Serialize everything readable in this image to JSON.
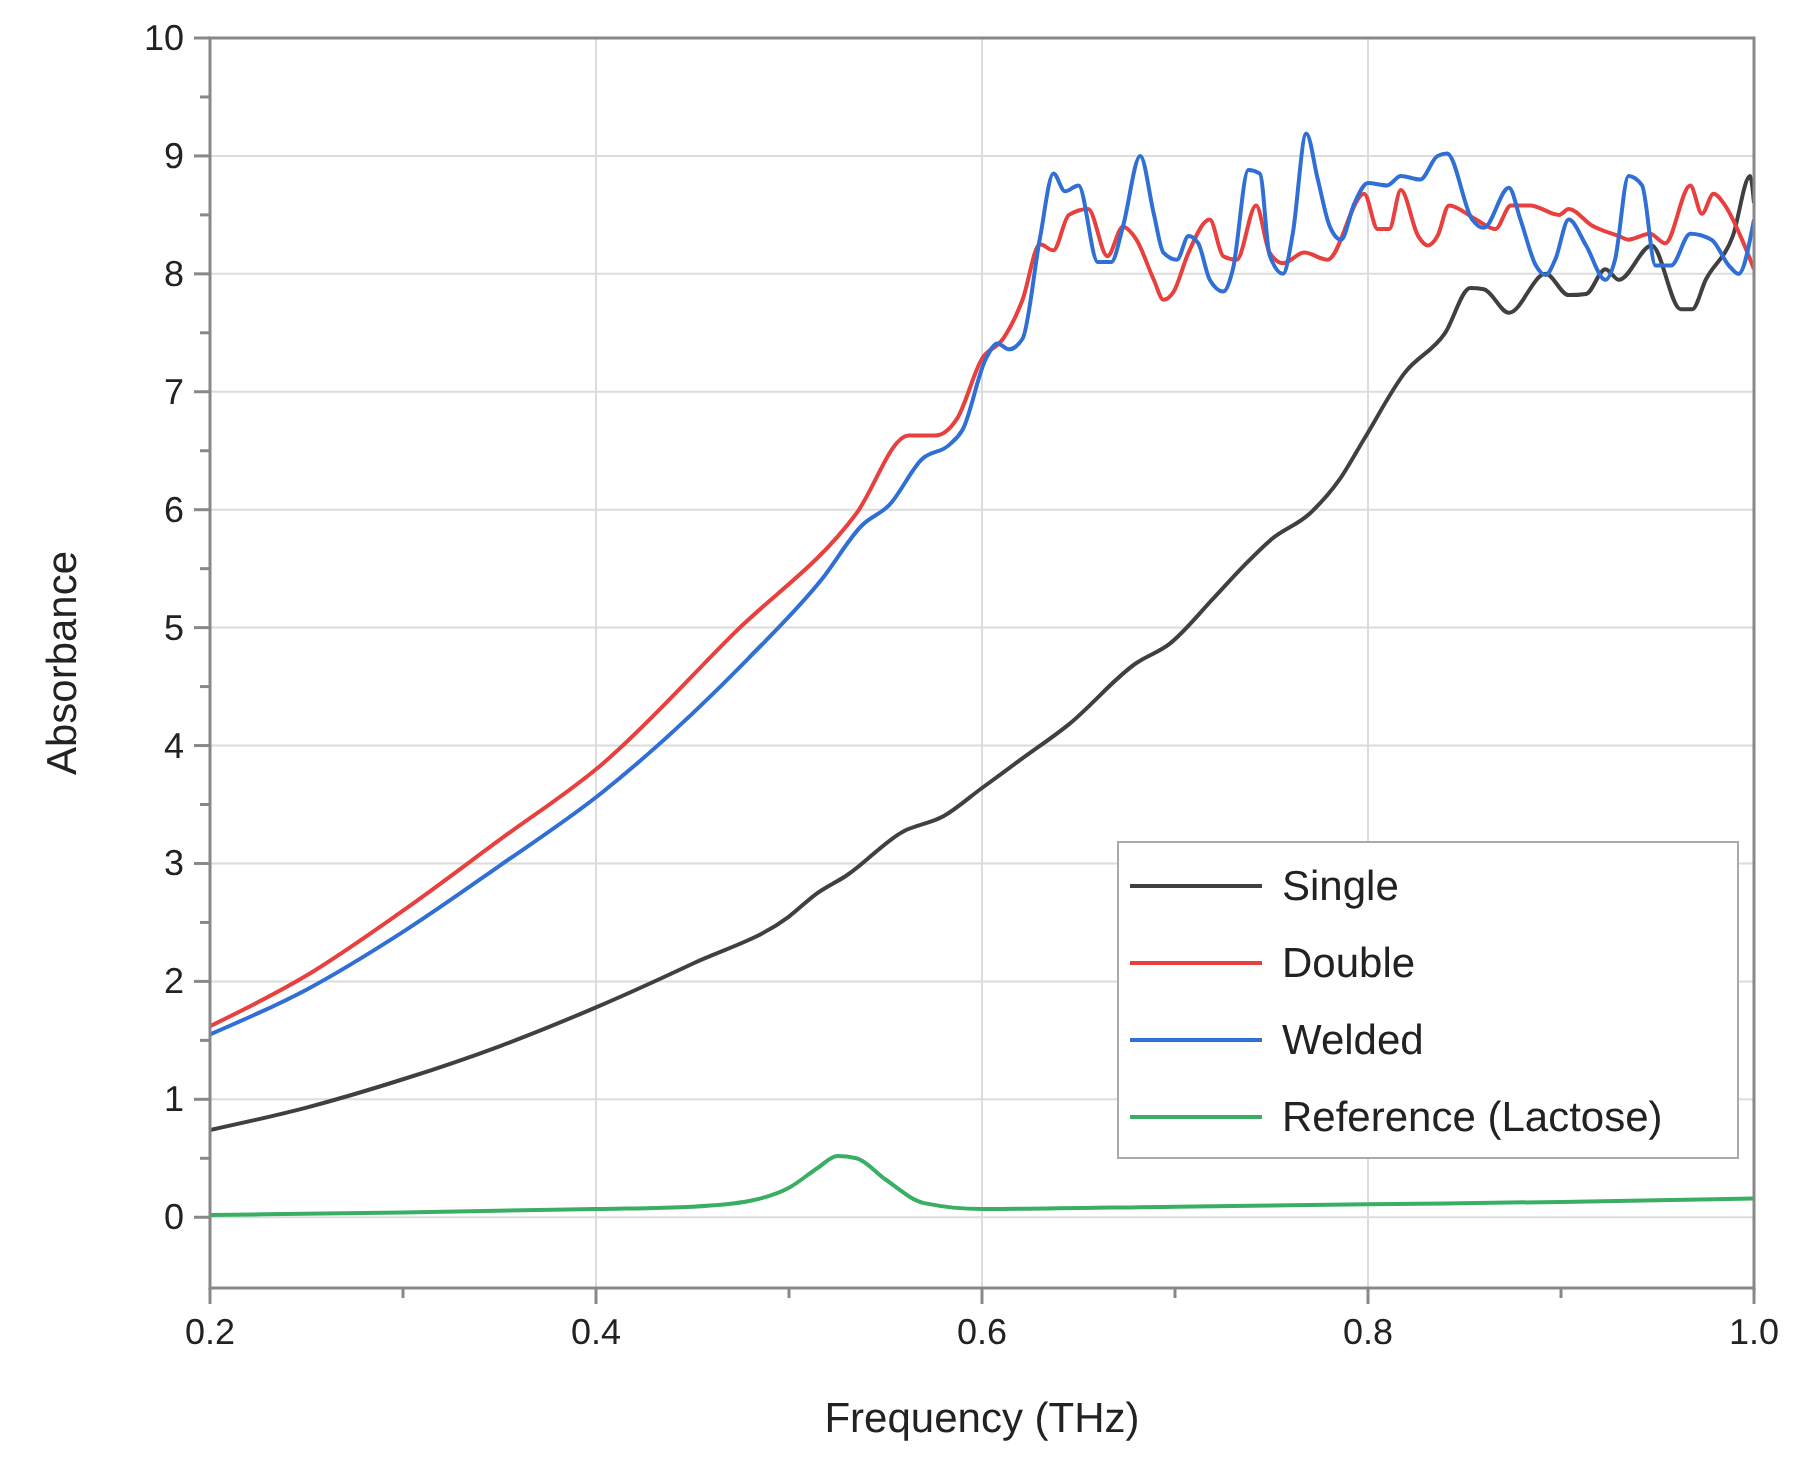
{
  "chart_data": {
    "type": "line",
    "xlabel": "Frequency (THz)",
    "ylabel": "Absorbance",
    "xlim": [
      0.2,
      1.0
    ],
    "ylim": [
      -0.6,
      10
    ],
    "xticks": [
      0.2,
      {
        "value": 0.3,
        "label": null
      },
      0.4,
      {
        "value": 0.5,
        "label": null
      },
      0.6,
      {
        "value": 0.7,
        "label": null
      },
      0.8,
      {
        "value": 0.9,
        "label": null
      },
      {
        "value": 1,
        "label": "1.0"
      }
    ],
    "yticks": [
      0,
      {
        "value": 0.5,
        "label": null
      },
      1,
      {
        "value": 1.5,
        "label": null
      },
      2,
      {
        "value": 2.5,
        "label": null
      },
      3,
      {
        "value": 3.5,
        "label": null
      },
      4,
      {
        "value": 4.5,
        "label": null
      },
      5,
      {
        "value": 5.5,
        "label": null
      },
      6,
      {
        "value": 6.5,
        "label": null
      },
      7,
      {
        "value": 7.5,
        "label": null
      },
      8,
      {
        "value": 8.5,
        "label": null
      },
      9,
      {
        "value": 9.5,
        "label": null
      },
      10
    ],
    "grid": true,
    "legend": "bottom right",
    "line_style": "solid",
    "marker": "none",
    "series": [
      {
        "name": "Single",
        "color": "#404040",
        "x": [
          0.2,
          0.25,
          0.3,
          0.35,
          0.4,
          0.45,
          0.5,
          0.514,
          0.53,
          0.559,
          0.58,
          0.6,
          0.62,
          0.645,
          0.68,
          0.697,
          0.72,
          0.736,
          0.75,
          0.77,
          0.785,
          0.798,
          0.819,
          0.84,
          0.853,
          0.86,
          0.873,
          0.892,
          0.904,
          0.913,
          0.923,
          0.93,
          0.947,
          0.962,
          0.968,
          0.975,
          0.989,
          0.998,
          1.0
        ],
        "values": [
          0.74,
          0.93,
          1.17,
          1.45,
          1.78,
          2.15,
          2.55,
          2.74,
          2.9,
          3.27,
          3.4,
          3.64,
          3.88,
          4.18,
          4.7,
          4.86,
          5.25,
          5.53,
          5.75,
          5.97,
          6.25,
          6.6,
          7.16,
          7.5,
          7.88,
          7.87,
          7.67,
          8.0,
          7.82,
          7.83,
          8.04,
          7.95,
          8.24,
          7.7,
          7.7,
          7.95,
          8.32,
          8.83,
          8.6
        ]
      },
      {
        "name": "Double",
        "color": "#e8403f",
        "x": [
          0.2,
          0.25,
          0.3,
          0.35,
          0.403,
          0.472,
          0.535,
          0.562,
          0.576,
          0.587,
          0.6,
          0.611,
          0.621,
          0.63,
          0.637,
          0.645,
          0.655,
          0.665,
          0.673,
          0.68,
          0.689,
          0.694,
          0.699,
          0.707,
          0.718,
          0.725,
          0.732,
          0.742,
          0.749,
          0.756,
          0.767,
          0.779,
          0.798,
          0.805,
          0.811,
          0.817,
          0.826,
          0.831,
          0.836,
          0.842,
          0.856,
          0.866,
          0.874,
          0.884,
          0.899,
          0.904,
          0.916,
          0.93,
          0.935,
          0.946,
          0.954,
          0.967,
          0.973,
          0.979,
          0.985,
          0.993,
          1.0
        ],
        "values": [
          1.62,
          2.05,
          2.6,
          3.2,
          3.84,
          4.96,
          5.97,
          6.63,
          6.63,
          6.77,
          7.28,
          7.45,
          7.78,
          8.25,
          8.2,
          8.5,
          8.55,
          8.15,
          8.4,
          8.29,
          7.95,
          7.78,
          7.84,
          8.18,
          8.46,
          8.15,
          8.12,
          8.58,
          8.18,
          8.09,
          8.18,
          8.12,
          8.68,
          8.38,
          8.38,
          8.71,
          8.32,
          8.24,
          8.32,
          8.58,
          8.46,
          8.38,
          8.58,
          8.58,
          8.5,
          8.55,
          8.41,
          8.32,
          8.29,
          8.34,
          8.26,
          8.75,
          8.51,
          8.68,
          8.58,
          8.32,
          8.04
        ]
      },
      {
        "name": "Welded",
        "color": "#2f6fd6",
        "x": [
          0.2,
          0.25,
          0.3,
          0.35,
          0.403,
          0.479,
          0.517,
          0.538,
          0.552,
          0.569,
          0.583,
          0.59,
          0.602,
          0.608,
          0.614,
          0.621,
          0.63,
          0.637,
          0.643,
          0.65,
          0.66,
          0.667,
          0.673,
          0.682,
          0.689,
          0.694,
          0.701,
          0.707,
          0.712,
          0.718,
          0.725,
          0.73,
          0.738,
          0.744,
          0.749,
          0.756,
          0.761,
          0.768,
          0.774,
          0.78,
          0.786,
          0.793,
          0.8,
          0.81,
          0.817,
          0.827,
          0.836,
          0.841,
          0.854,
          0.86,
          0.873,
          0.879,
          0.887,
          0.892,
          0.897,
          0.904,
          0.913,
          0.923,
          0.928,
          0.935,
          0.942,
          0.949,
          0.957,
          0.967,
          0.978,
          0.987,
          0.992,
          1.0
        ],
        "values": [
          1.55,
          1.93,
          2.42,
          2.98,
          3.6,
          4.74,
          5.41,
          5.87,
          6.04,
          6.43,
          6.55,
          6.68,
          7.28,
          7.41,
          7.36,
          7.45,
          8.3,
          8.85,
          8.7,
          8.75,
          8.1,
          8.1,
          8.4,
          9.0,
          8.51,
          8.18,
          8.12,
          8.32,
          8.26,
          7.95,
          7.85,
          8.04,
          8.88,
          8.85,
          8.16,
          8.0,
          8.34,
          9.19,
          8.8,
          8.41,
          8.29,
          8.6,
          8.77,
          8.75,
          8.83,
          8.8,
          9.0,
          9.02,
          8.46,
          8.39,
          8.73,
          8.46,
          8.07,
          7.99,
          8.12,
          8.46,
          8.24,
          7.95,
          8.12,
          8.83,
          8.75,
          8.07,
          8.07,
          8.34,
          8.29,
          8.07,
          8.0,
          8.46
        ]
      },
      {
        "name": "Reference (Lactose)",
        "color": "#3aae63",
        "x": [
          0.2,
          0.3,
          0.4,
          0.45,
          0.48,
          0.5,
          0.515,
          0.525,
          0.535,
          0.55,
          0.57,
          0.6,
          0.7,
          0.8,
          0.9,
          1.0
        ],
        "values": [
          0.02,
          0.04,
          0.07,
          0.09,
          0.14,
          0.25,
          0.42,
          0.52,
          0.5,
          0.32,
          0.12,
          0.07,
          0.09,
          0.11,
          0.13,
          0.16
        ]
      }
    ]
  }
}
